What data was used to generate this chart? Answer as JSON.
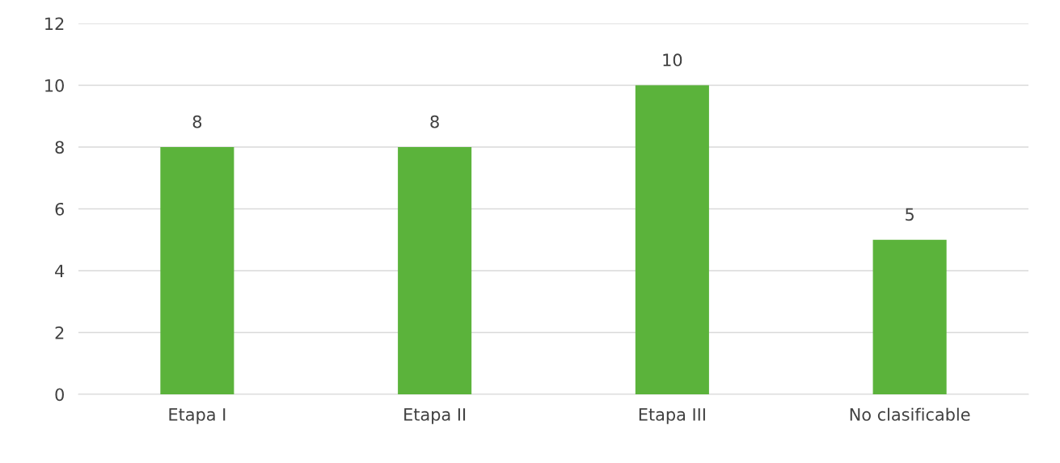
{
  "chart_data": {
    "type": "bar",
    "categories": [
      "Etapa I",
      "Etapa II",
      "Etapa III",
      "No clasificable"
    ],
    "values": [
      8,
      8,
      10,
      5
    ],
    "color": "#5bb33b",
    "ylim": [
      0,
      12
    ],
    "yticks": [
      0,
      2,
      4,
      6,
      8,
      10,
      12
    ],
    "grid": "y",
    "data_labels": true
  }
}
